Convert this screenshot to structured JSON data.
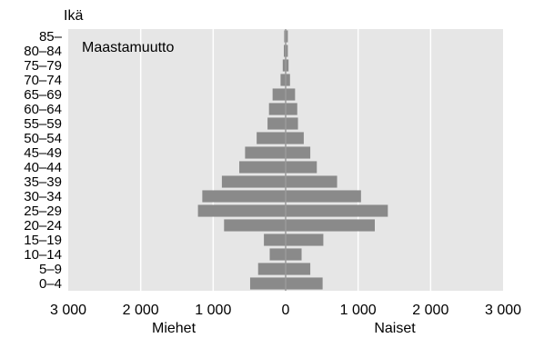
{
  "chart_data": {
    "type": "bar",
    "orientation": "horizontal",
    "subtype": "population-pyramid",
    "annotation": "Maastamuutto",
    "ylabel": "Ikä",
    "categories": [
      "0–4",
      "5–9",
      "10–14",
      "15–19",
      "20–24",
      "25–29",
      "30–34",
      "35–39",
      "40–44",
      "45–49",
      "50–54",
      "55–59",
      "60–64",
      "65–69",
      "70–74",
      "75–79",
      "80–84",
      "85–"
    ],
    "series": [
      {
        "name": "Miehet",
        "side": "left",
        "values": [
          490,
          380,
          220,
          300,
          850,
          1210,
          1150,
          880,
          640,
          560,
          400,
          250,
          230,
          180,
          70,
          40,
          25,
          20
        ]
      },
      {
        "name": "Naiset",
        "side": "right",
        "values": [
          510,
          340,
          220,
          520,
          1230,
          1410,
          1040,
          710,
          430,
          340,
          250,
          170,
          160,
          130,
          60,
          40,
          30,
          30
        ]
      }
    ],
    "xlim": [
      -3000,
      3000
    ],
    "xticks": [
      -3000,
      -2000,
      -1000,
      0,
      1000,
      2000,
      3000
    ],
    "xtick_labels": [
      "3 000",
      "2 000",
      "1 000",
      "0",
      "1 000",
      "2 000",
      "3 000"
    ],
    "grid": true,
    "colors": {
      "bar": "#8a8a8a",
      "plot_bg": "#e6e6e6",
      "grid": "#ffffff",
      "zero_line": "#9a9a9a"
    }
  }
}
